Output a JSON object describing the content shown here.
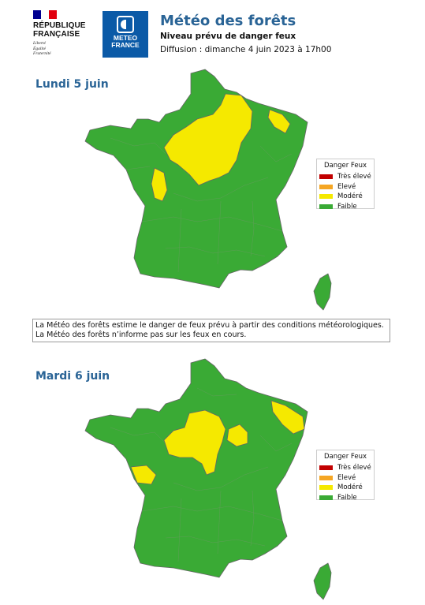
{
  "header": {
    "rf_logo": {
      "line1": "RÉPUBLIQUE",
      "line2": "FRANÇAISE",
      "motto": [
        "Liberté",
        "Égalité",
        "Fraternité"
      ],
      "flag_colors": [
        "#000091",
        "#ffffff",
        "#e1000f"
      ]
    },
    "mf_logo": {
      "line1": "METEO",
      "line2": "FRANCE",
      "color": "#0b5aa7"
    },
    "title": "Météo des forêts",
    "subtitle": "Niveau prévu de danger feux",
    "diffusion": "Diffusion : dimanche 4 juin 2023 à 17h00"
  },
  "legend": {
    "title": "Danger Feux",
    "levels": [
      {
        "label": "Très élevé",
        "color": "#c20000"
      },
      {
        "label": "Elevé",
        "color": "#f5a623"
      },
      {
        "label": "Modéré",
        "color": "#f5e900"
      },
      {
        "label": "Faible",
        "color": "#3aaa35"
      }
    ]
  },
  "notice": {
    "line1": "La Météo des forêts estime le danger de feux prévu à partir des conditions météorologiques.",
    "line2": "La Météo des forêts n’informe pas sur les feux en cours."
  },
  "maps": [
    {
      "day": "Lundi 5 juin",
      "regions_moderate": [
        "Île-de-France et Centre-Val de Loire",
        "Nord-Est de l'Île-de-France (Aisne, Marne)",
        "Vienne",
        "Nord de l'Alsace"
      ],
      "default_level": "Faible"
    },
    {
      "day": "Mardi 6 juin",
      "regions_moderate": [
        "Centre-Val de Loire et Île-de-France",
        "Marne / Aube",
        "Alsace",
        "Vendée / Charente-Maritime"
      ],
      "default_level": "Faible"
    }
  ]
}
